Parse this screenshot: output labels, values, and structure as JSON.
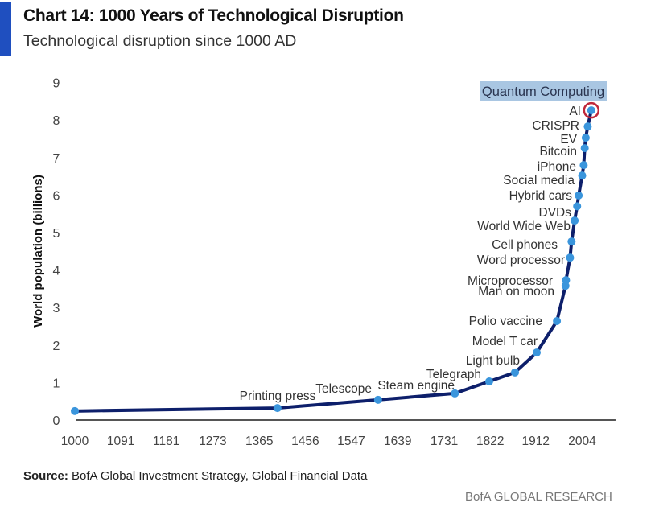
{
  "header": {
    "title": "Chart 14: 1000 Years of Technological Disruption",
    "subtitle": "Technological disruption since 1000 AD"
  },
  "footer": {
    "source_label": "Source:",
    "source_text": "BofA Global Investment Strategy, Global Financial Data",
    "brand": "BofA GLOBAL RESEARCH"
  },
  "colors": {
    "accent": "#1f4fbf",
    "line": "#0d1f6b",
    "marker": "#3a95dc",
    "highlight_circle": "#c0283a",
    "highlight_label_bg": "#a9c6e2"
  },
  "chart_data": {
    "type": "line",
    "title": "Chart 14: 1000 Years of Technological Disruption",
    "subtitle": "Technological disruption since 1000 AD",
    "xlabel": "",
    "ylabel": "World population (billions)",
    "xlim": [
      1000,
      2070
    ],
    "ylim": [
      0,
      9
    ],
    "x_ticks": [
      1000,
      1091,
      1181,
      1273,
      1365,
      1456,
      1547,
      1639,
      1731,
      1822,
      1912,
      2004
    ],
    "y_ticks": [
      0,
      1,
      2,
      3,
      4,
      5,
      6,
      7,
      8,
      9
    ],
    "grid": false,
    "series": [
      {
        "name": "World population",
        "points": [
          {
            "x": 1000,
            "y": 0.24,
            "label": ""
          },
          {
            "x": 1401,
            "y": 0.32,
            "label": "Printing press"
          },
          {
            "x": 1600,
            "y": 0.54,
            "label": "Telescope"
          },
          {
            "x": 1752,
            "y": 0.71,
            "label": "Steam engine"
          },
          {
            "x": 1820,
            "y": 1.03,
            "label": "Telegraph"
          },
          {
            "x": 1871,
            "y": 1.27,
            "label": "Light bulb"
          },
          {
            "x": 1914,
            "y": 1.8,
            "label": "Model T car"
          },
          {
            "x": 1954,
            "y": 2.64,
            "label": "Polio vaccine"
          },
          {
            "x": 1971,
            "y": 3.58,
            "label": "Man on moon"
          },
          {
            "x": 1972,
            "y": 3.73,
            "label": "Microprocessor"
          },
          {
            "x": 1980,
            "y": 4.33,
            "label": "Word processor"
          },
          {
            "x": 1983,
            "y": 4.76,
            "label": "Cell phones"
          },
          {
            "x": 1989,
            "y": 5.32,
            "label": "World Wide Web"
          },
          {
            "x": 1994,
            "y": 5.7,
            "label": "DVDs"
          },
          {
            "x": 1997,
            "y": 5.99,
            "label": "Hybrid cars"
          },
          {
            "x": 2004,
            "y": 6.52,
            "label": "Social media"
          },
          {
            "x": 2007,
            "y": 6.8,
            "label": "iPhone"
          },
          {
            "x": 2009,
            "y": 7.25,
            "label": "Bitcoin"
          },
          {
            "x": 2011,
            "y": 7.53,
            "label": "EV"
          },
          {
            "x": 2015,
            "y": 7.83,
            "label": "CRISPR"
          },
          {
            "x": 2022,
            "y": 8.26,
            "label": "AI",
            "highlight": true
          }
        ]
      }
    ],
    "annotations": [
      {
        "text": "Quantum Computing",
        "highlighted": true
      }
    ]
  }
}
